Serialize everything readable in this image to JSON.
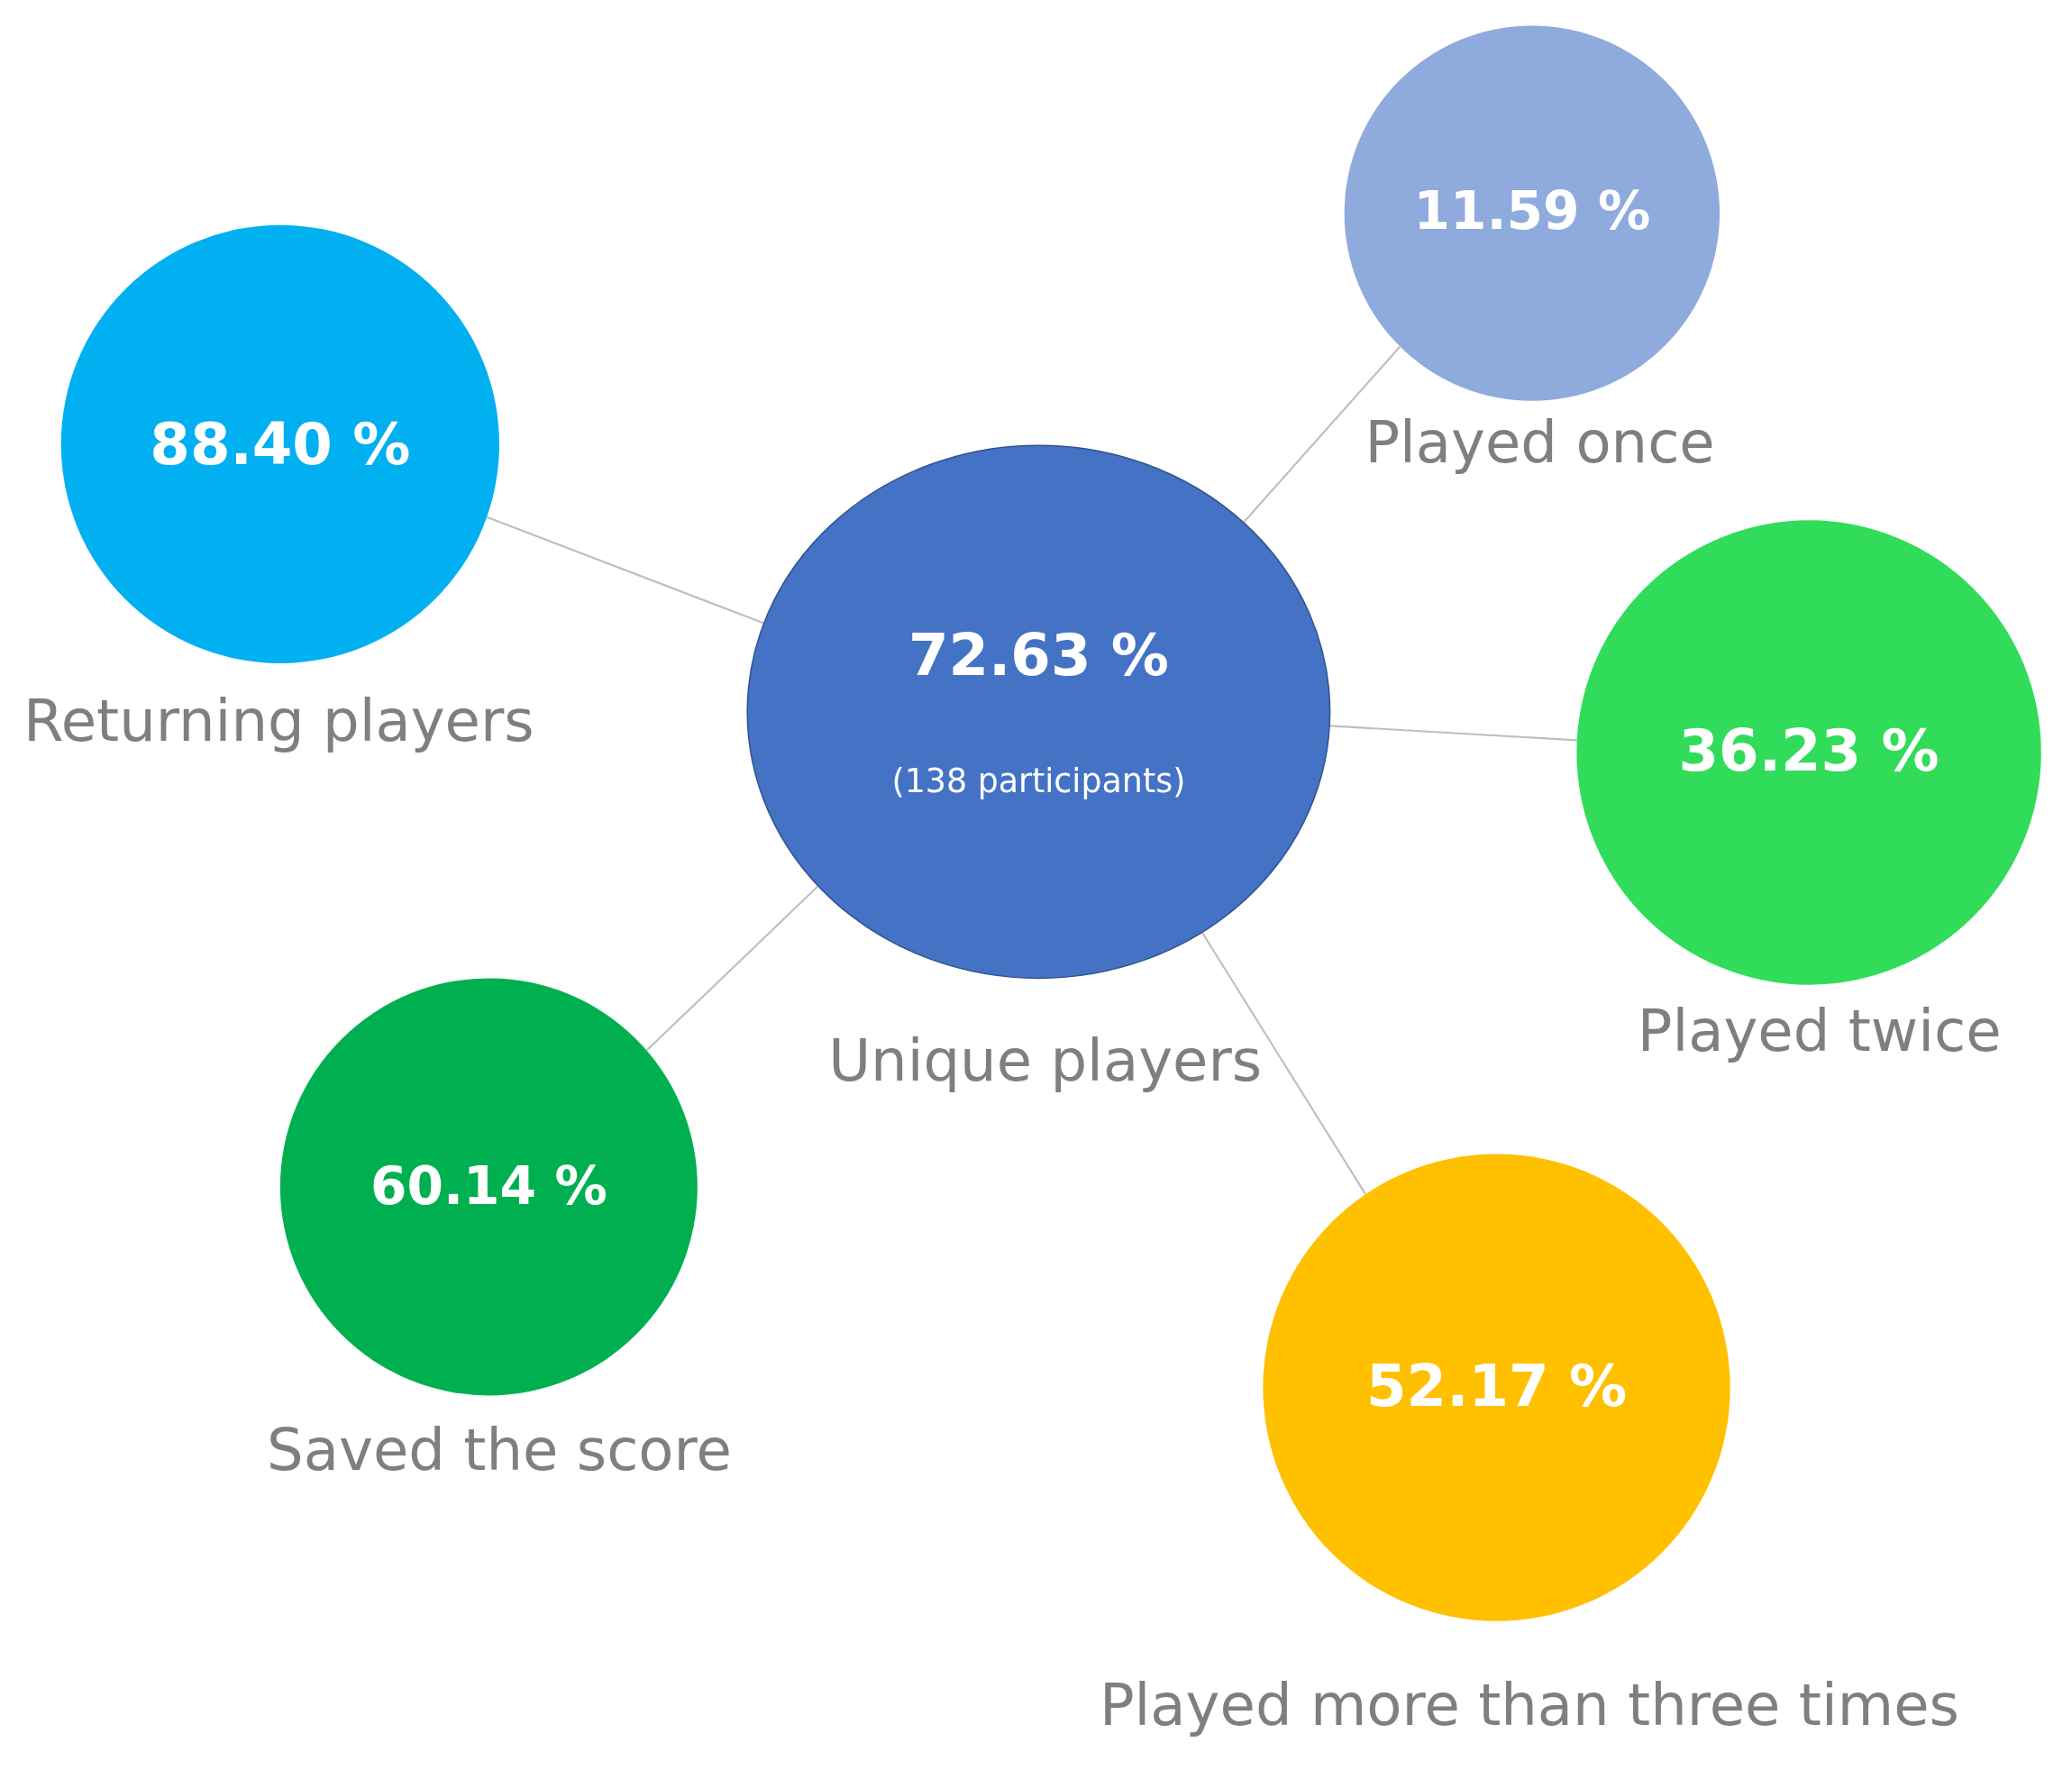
{
  "chart_data": {
    "type": "other",
    "categories": [
      "Unique players",
      "Returning players",
      "Played once",
      "Played twice",
      "Saved the score",
      "Played more than three times"
    ],
    "values": [
      72.63,
      88.4,
      11.59,
      36.23,
      60.14,
      52.17
    ],
    "value_labels": [
      "72.63 %",
      "88.40 %",
      "11.59 %",
      "36.23 %",
      "60.14 %",
      "52.17 %"
    ],
    "colors": [
      "#4472c4",
      "#00b0f0",
      "#8faadc",
      "#31dc5a",
      "#00b050",
      "#ffc000"
    ],
    "annotations": [
      "(138 participants)"
    ]
  }
}
